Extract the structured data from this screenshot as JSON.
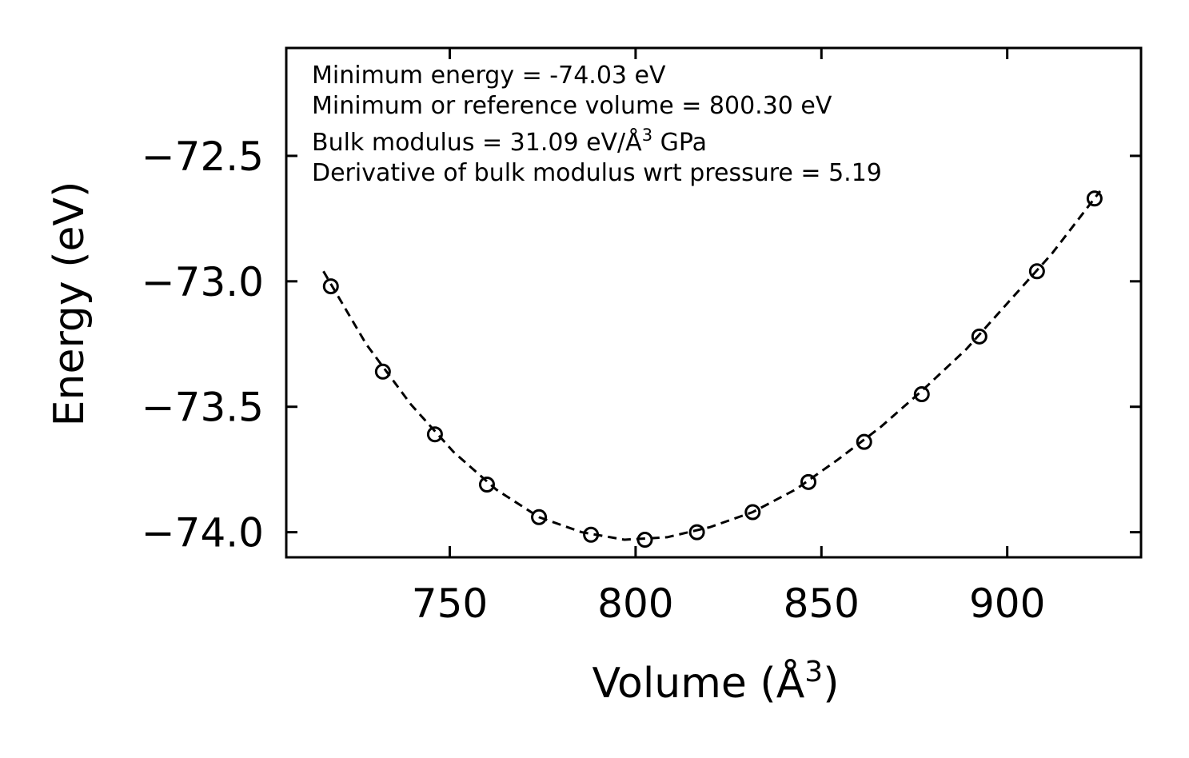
{
  "chart_data": {
    "type": "scatter",
    "title": "",
    "xlabel": "Volume (Å",
    "xlabel_sup": "3",
    "xlabel_end": ")",
    "ylabel": "Energy (eV)",
    "xlim": [
      706,
      936
    ],
    "ylim": [
      -74.1,
      -72.07
    ],
    "xticks": [
      750,
      800,
      850,
      900
    ],
    "xtick_labels": [
      "750",
      "800",
      "850",
      "900"
    ],
    "yticks": [
      -72.5,
      -73.0,
      -73.5,
      -74.0
    ],
    "ytick_labels": [
      "−72.5",
      "−73.0",
      "−73.5",
      "−74.0"
    ],
    "series": [
      {
        "name": "data",
        "marker": "open-circle",
        "x": [
          718.0,
          732.0,
          746.0,
          760.0,
          774.0,
          788.0,
          802.5,
          816.5,
          831.5,
          846.5,
          861.5,
          877.0,
          892.5,
          908.0,
          923.5
        ],
        "y": [
          -73.02,
          -73.36,
          -73.61,
          -73.81,
          -73.94,
          -74.01,
          -74.03,
          -74.0,
          -73.92,
          -73.8,
          -73.64,
          -73.45,
          -73.22,
          -72.96,
          -72.67
        ]
      },
      {
        "name": "fit",
        "style": "dashed",
        "x": [
          716.0,
          727.5,
          739.5,
          751.0,
          762.5,
          774.0,
          785.5,
          797.0,
          808.5,
          820.0,
          831.5,
          843.0,
          854.5,
          866.0,
          877.5,
          889.0,
          900.5,
          912.0,
          925.0
        ],
        "y": [
          -72.96,
          -73.25,
          -73.49,
          -73.68,
          -73.83,
          -73.94,
          -74.0,
          -74.03,
          -74.02,
          -73.98,
          -73.92,
          -73.83,
          -73.71,
          -73.58,
          -73.43,
          -73.27,
          -73.08,
          -72.89,
          -72.64
        ]
      }
    ],
    "annotations": {
      "line1": "Minimum energy = -74.03 eV",
      "line2": "Minimum or reference volume = 800.30 eV",
      "line3_pre": "Bulk modulus = 31.09 eV/Å",
      "line3_sup": "3",
      "line3_post": " GPa",
      "line4": "Derivative of bulk modulus wrt pressure = 5.19"
    },
    "colors": {
      "line": "#000000",
      "marker_edge": "#000000",
      "background": "#ffffff"
    }
  }
}
